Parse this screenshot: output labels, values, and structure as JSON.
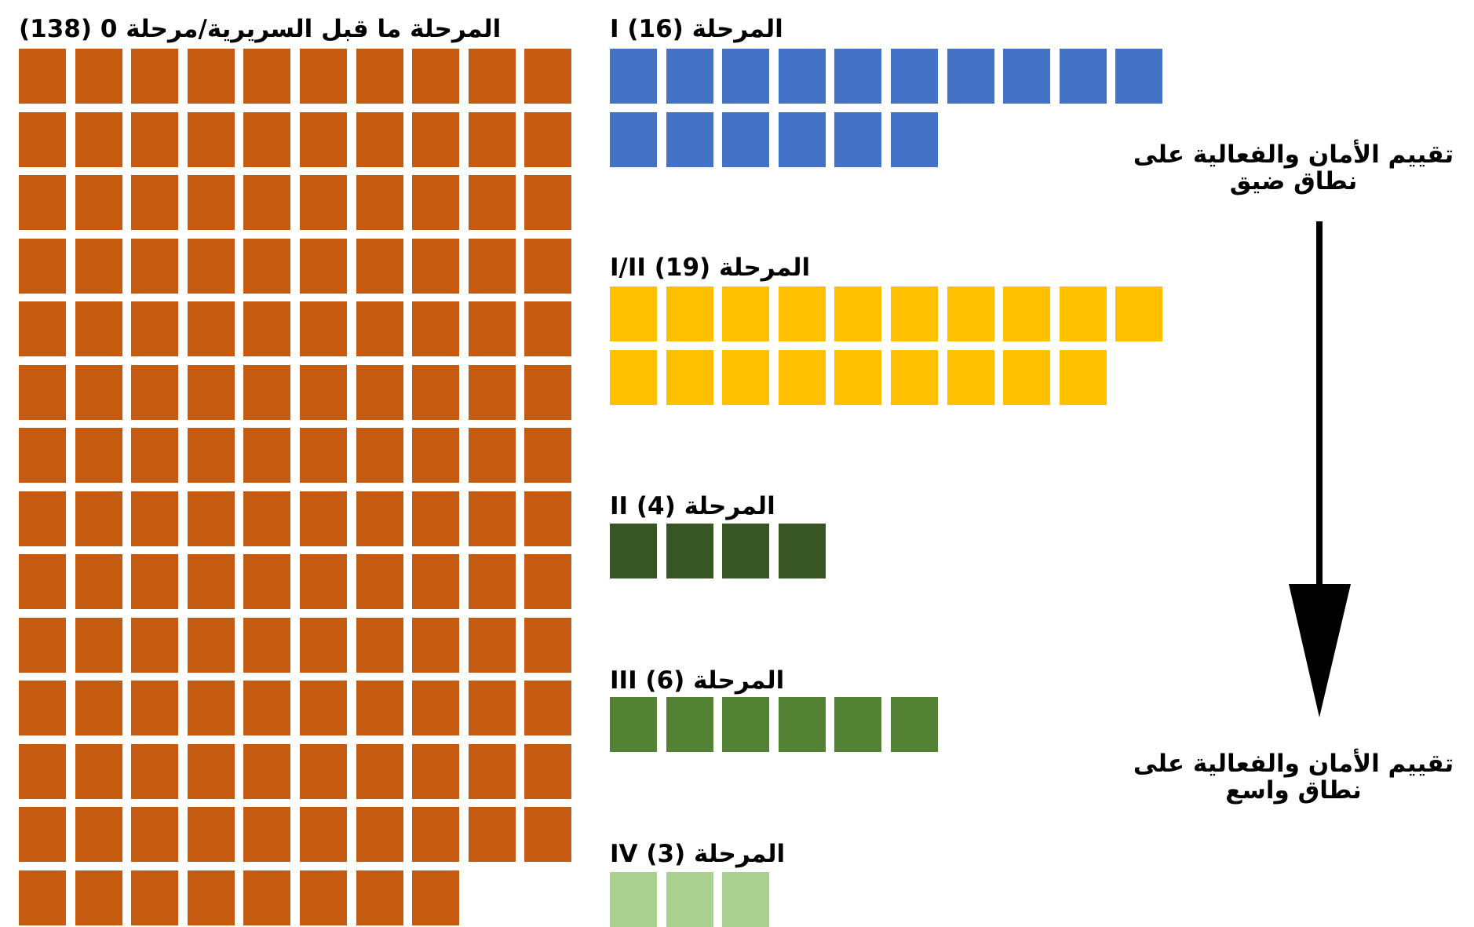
{
  "chart_data": {
    "type": "waffle",
    "unit": "one square per trial",
    "series": [
      {
        "title": "المرحلة ما قبل السريرية/مرحلة 0 (138)",
        "name": "Preclinical / Phase 0",
        "value": 138,
        "color": "#C55A11"
      },
      {
        "title": "المرحلة I (16)",
        "name": "Phase I",
        "value": 16,
        "color": "#4472C4"
      },
      {
        "title": "المرحلة I/II (19)",
        "name": "Phase I/II",
        "value": 19,
        "color": "#FFC000"
      },
      {
        "title": "المرحلة II (4)",
        "name": "Phase II",
        "value": 4,
        "color": "#375623"
      },
      {
        "title": "المرحلة III (6)",
        "name": "Phase III",
        "value": 6,
        "color": "#548235"
      },
      {
        "title": "المرحلة IV (3)",
        "name": "Phase IV",
        "value": 3,
        "color": "#A9D08E"
      }
    ],
    "annotations": {
      "top": "تقييم الأمان والفعالية على نطاق ضيق",
      "bottom": "تقييم الأمان والفعالية على نطاق واسع"
    }
  }
}
